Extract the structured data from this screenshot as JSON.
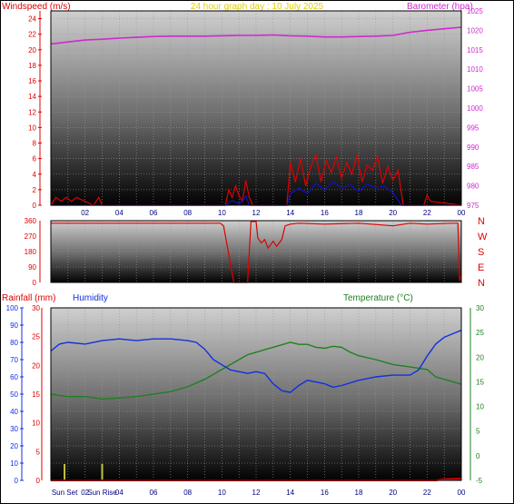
{
  "header": {
    "wind_label": "Windspeed (m/s)",
    "title": "24 hour graph day : 10 July 2025",
    "baro_label": "Barometer (hpa)"
  },
  "lower_header": {
    "rain_label": "Rainfall (mm)",
    "humidity_label": "Humidity",
    "temp_label": "Temperature (°C)"
  },
  "sun": {
    "sunset_label": "Sun Set",
    "sunrise_label": "Sun Rise",
    "sunset_hour": 0.8,
    "sunrise_hour": 3.0
  },
  "colors": {
    "wind": "#e00000",
    "gust": "#e00000",
    "wind_avg": "#1010d0",
    "barometer": "#d028d0",
    "direction": "#e00000",
    "humidity": "#1030e0",
    "temperature": "#208020",
    "title": "#e0d000",
    "sun_marker": "#c8c040",
    "rain": "#e00000"
  },
  "chart_data": [
    {
      "type": "line",
      "title": "24 hour graph day : 10 July 2025",
      "xlabel": "",
      "x_ticks": [
        "02",
        "04",
        "06",
        "08",
        "10",
        "12",
        "14",
        "16",
        "18",
        "20",
        "22",
        "00"
      ],
      "xlim": [
        0,
        24
      ],
      "ylabel_left": "Windspeed (m/s)",
      "ylim_left": [
        0,
        25
      ],
      "y_ticks_left": [
        0,
        2,
        4,
        6,
        8,
        10,
        12,
        14,
        16,
        18,
        20,
        22,
        24
      ],
      "ylabel_right": "Barometer (hpa)",
      "ylim_right": [
        975,
        1025
      ],
      "y_ticks_right": [
        975,
        980,
        985,
        990,
        995,
        1000,
        1005,
        1010,
        1015,
        1020,
        1025
      ],
      "series": [
        {
          "name": "Barometer (hpa)",
          "axis": "right",
          "x": [
            0,
            1,
            2,
            3,
            4,
            5,
            6,
            7,
            8,
            9,
            10,
            11,
            12,
            13,
            14,
            15,
            16,
            17,
            18,
            19,
            20,
            21,
            22,
            23,
            24
          ],
          "y": [
            1016.5,
            1017,
            1017.5,
            1017.7,
            1018,
            1018.2,
            1018.4,
            1018.5,
            1018.5,
            1018.5,
            1018.6,
            1018.7,
            1018.7,
            1018.8,
            1018.6,
            1018.5,
            1018.3,
            1018.3,
            1018.4,
            1018.5,
            1018.7,
            1019.5,
            1020,
            1020.4,
            1020.8
          ]
        },
        {
          "name": "Windspeed gust (m/s)",
          "axis": "left",
          "x": [
            0,
            0.3,
            0.6,
            0.9,
            1.2,
            1.5,
            2.5,
            2.8,
            3.0,
            10.2,
            10.4,
            10.6,
            10.8,
            11.0,
            11.2,
            11.4,
            11.6,
            11.8,
            13.8,
            14.0,
            14.3,
            14.6,
            14.9,
            15.2,
            15.5,
            15.8,
            16.1,
            16.4,
            16.7,
            17.0,
            17.3,
            17.6,
            17.9,
            18.2,
            18.5,
            18.8,
            19.1,
            19.4,
            19.7,
            20.0,
            20.3,
            20.6,
            21.8,
            22.0,
            22.2,
            24
          ],
          "y": [
            0,
            1,
            0.5,
            1,
            0.5,
            1,
            0,
            1,
            0,
            0,
            2,
            1,
            2.5,
            1.2,
            0.5,
            3.2,
            1,
            0,
            0,
            5.5,
            3,
            6,
            2.5,
            5,
            6.5,
            3,
            5.8,
            4.2,
            6.2,
            3.5,
            5.5,
            4,
            6.5,
            3,
            5.2,
            4.5,
            6.3,
            2.8,
            5,
            3.2,
            4.5,
            0,
            0,
            1.3,
            0.5,
            0
          ]
        },
        {
          "name": "Windspeed average (m/s)",
          "axis": "left",
          "x": [
            0,
            10.2,
            10.6,
            11.0,
            11.2,
            11.4,
            11.6,
            13.8,
            14.0,
            14.5,
            15.0,
            15.5,
            16.0,
            16.5,
            17.0,
            17.5,
            18.0,
            18.5,
            19.0,
            19.5,
            20.0,
            20.5,
            24
          ],
          "y": [
            0,
            0,
            0.6,
            0.2,
            0.5,
            1.2,
            0,
            0,
            1.5,
            2.2,
            1.5,
            2.8,
            2,
            3,
            2.2,
            2.6,
            1.8,
            2.7,
            2.2,
            2.5,
            1.6,
            0,
            0
          ]
        }
      ]
    },
    {
      "type": "line",
      "title": "",
      "xlim": [
        0,
        24
      ],
      "y_ticks_left": [
        0,
        90,
        180,
        270,
        360
      ],
      "ylim_left": [
        0,
        360
      ],
      "y_ticks_right": [
        "N",
        "W",
        "S",
        "E",
        "N"
      ],
      "series": [
        {
          "name": "Wind direction",
          "x": [
            0,
            9.9,
            10.1,
            10.7,
            10.9,
            11.0,
            11.5,
            11.7,
            12.0,
            12.1,
            12.3,
            12.5,
            12.7,
            13.0,
            13.2,
            13.5,
            13.7,
            14.0,
            14.5,
            16.0,
            18.0,
            20.0,
            21.0,
            22.0,
            23.5,
            23.8,
            23.9,
            24
          ],
          "y": [
            345,
            345,
            330,
            0,
            0,
            0,
            0,
            355,
            355,
            260,
            230,
            250,
            200,
            240,
            210,
            250,
            330,
            340,
            345,
            340,
            345,
            330,
            345,
            340,
            345,
            345,
            10,
            40
          ]
        }
      ]
    },
    {
      "type": "line",
      "title": "",
      "x_ticks": [
        "Sun Set",
        "02",
        "Sun Rise",
        "04",
        "06",
        "08",
        "10",
        "12",
        "14",
        "16",
        "18",
        "20",
        "22",
        "00"
      ],
      "xlim": [
        0,
        24
      ],
      "ylabel_left_1": "Rainfall (mm)",
      "ylim_rain": [
        0,
        30
      ],
      "y_ticks_rain": [
        0,
        5,
        10,
        15,
        20,
        25,
        30
      ],
      "ylabel_left_2": "Humidity",
      "ylim_humidity": [
        0,
        100
      ],
      "y_ticks_humidity": [
        0,
        10,
        20,
        30,
        40,
        50,
        60,
        70,
        80,
        90,
        100
      ],
      "ylabel_right": "Temperature (°C)",
      "ylim_temp": [
        -5,
        30
      ],
      "y_ticks_temp": [
        -5,
        0,
        5,
        10,
        15,
        20,
        25,
        30
      ],
      "series": [
        {
          "name": "Humidity",
          "axis": "humidity",
          "x": [
            0,
            0.5,
            1,
            2,
            3,
            4,
            5,
            6,
            7,
            8,
            8.5,
            9,
            9.5,
            10,
            10.5,
            11,
            11.5,
            12,
            12.5,
            13,
            13.5,
            14,
            14.5,
            15,
            15.5,
            16,
            16.5,
            17,
            18,
            19,
            20,
            20.5,
            21,
            21.5,
            22,
            22.5,
            23,
            23.5,
            24
          ],
          "y": [
            75,
            79,
            80,
            79,
            81,
            82,
            81,
            82,
            82,
            81,
            80,
            76,
            70,
            67,
            64,
            63,
            62,
            63,
            62,
            56,
            52,
            51,
            55,
            58,
            57,
            56,
            54,
            55,
            58,
            60,
            61,
            61,
            61,
            64,
            72,
            79,
            83,
            85,
            87
          ]
        },
        {
          "name": "Temperature (°C)",
          "axis": "temp",
          "x": [
            0,
            1,
            2,
            3,
            4,
            5,
            6,
            7,
            8,
            9,
            10,
            10.5,
            11,
            11.5,
            12,
            12.5,
            13,
            13.5,
            14,
            14.5,
            15,
            15.5,
            16,
            16.5,
            17,
            17.5,
            18,
            19,
            20,
            21,
            22,
            22.5,
            23,
            23.5,
            24
          ],
          "y": [
            12.5,
            12,
            12,
            11.5,
            11.7,
            12,
            12.5,
            13,
            14,
            15.5,
            17.5,
            18.5,
            19.5,
            20.5,
            21,
            21.5,
            22,
            22.5,
            23,
            22.6,
            22.6,
            22,
            21.8,
            22.2,
            22,
            21,
            20.3,
            19.5,
            18.5,
            18,
            17.5,
            16,
            15.5,
            15,
            14.5
          ]
        },
        {
          "name": "Rainfall (mm)",
          "axis": "rain",
          "x": [
            0,
            22.5,
            23,
            24
          ],
          "y": [
            0,
            0,
            0.2,
            0.3
          ]
        }
      ]
    }
  ]
}
